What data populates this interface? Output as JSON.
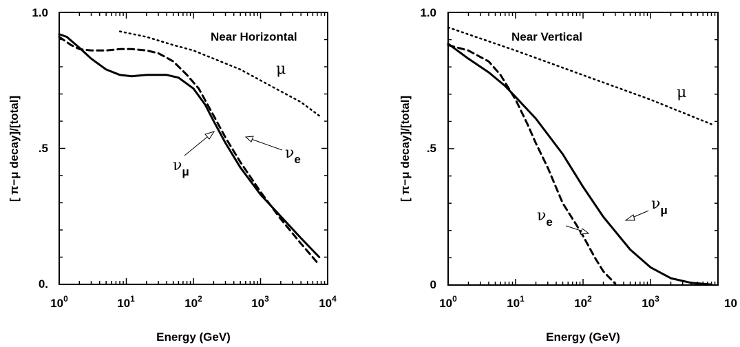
{
  "chart_data": [
    {
      "type": "line",
      "title": "Near Horizontal",
      "xlabel": "Energy (GeV)",
      "ylabel": "[ π−μ  decay]/[total]",
      "xscale": "log",
      "xlim": [
        1,
        10000
      ],
      "ylim": [
        0,
        1
      ],
      "x_ticks": [
        {
          "base": "10",
          "exp": "0"
        },
        {
          "base": "10",
          "exp": "1"
        },
        {
          "base": "10",
          "exp": "2"
        },
        {
          "base": "10",
          "exp": "3"
        },
        {
          "base": "10",
          "exp": "4"
        }
      ],
      "y_ticks": [
        "0.",
        ".5",
        "1.0"
      ],
      "series": [
        {
          "name": "μ",
          "style": "dotted",
          "x": [
            8,
            20,
            50,
            100,
            200,
            500,
            1000,
            2000,
            4000,
            7500
          ],
          "y": [
            0.93,
            0.91,
            0.88,
            0.86,
            0.83,
            0.79,
            0.75,
            0.71,
            0.67,
            0.62
          ]
        },
        {
          "name": "νe",
          "style": "dashed",
          "x": [
            1,
            1.5,
            2,
            3,
            5,
            8,
            12,
            20,
            30,
            50,
            80,
            120,
            200,
            300,
            500,
            1000,
            2000,
            4000,
            7000
          ],
          "y": [
            0.91,
            0.88,
            0.865,
            0.86,
            0.86,
            0.865,
            0.865,
            0.86,
            0.85,
            0.82,
            0.77,
            0.72,
            0.62,
            0.54,
            0.45,
            0.34,
            0.24,
            0.15,
            0.08
          ]
        },
        {
          "name": "νμ",
          "style": "solid",
          "x": [
            1,
            1.3,
            2,
            3,
            5,
            8,
            12,
            20,
            40,
            60,
            100,
            150,
            200,
            300,
            500,
            1000,
            2000,
            4000,
            7500
          ],
          "y": [
            0.92,
            0.91,
            0.87,
            0.83,
            0.79,
            0.77,
            0.765,
            0.77,
            0.77,
            0.76,
            0.72,
            0.66,
            0.6,
            0.52,
            0.43,
            0.33,
            0.25,
            0.17,
            0.1
          ]
        }
      ],
      "annotations": [
        {
          "text": "μ",
          "sub": ""
        },
        {
          "text": "ν",
          "sub": "μ"
        },
        {
          "text": "ν",
          "sub": "e"
        }
      ]
    },
    {
      "type": "line",
      "title": "Near Vertical",
      "xlabel": "Energy (GeV)",
      "ylabel": "[ π−μ  decay]/[total]",
      "xscale": "log",
      "xlim": [
        1,
        10000
      ],
      "ylim": [
        0,
        1
      ],
      "x_ticks": [
        {
          "base": "10",
          "exp": "0"
        },
        {
          "base": "10",
          "exp": "1"
        },
        {
          "base": "10",
          "exp": "2"
        },
        {
          "base": "10",
          "exp": "3"
        },
        {
          "base": "10",
          "exp": ""
        }
      ],
      "y_ticks": [
        "0",
        ".5",
        "1.0"
      ],
      "series": [
        {
          "name": "μ",
          "style": "dotted",
          "x": [
            1,
            10,
            100,
            1000,
            8000
          ],
          "y": [
            0.945,
            0.86,
            0.77,
            0.68,
            0.59
          ]
        },
        {
          "name": "νe",
          "style": "dashed",
          "x": [
            1,
            2,
            4,
            6,
            10,
            15,
            20,
            30,
            50,
            80,
            100,
            150,
            200,
            300
          ],
          "y": [
            0.88,
            0.86,
            0.82,
            0.77,
            0.68,
            0.59,
            0.52,
            0.43,
            0.3,
            0.22,
            0.18,
            0.1,
            0.05,
            0.005
          ]
        },
        {
          "name": "νμ",
          "style": "solid",
          "x": [
            1,
            2,
            4,
            7,
            10,
            20,
            50,
            100,
            200,
            500,
            1000,
            2000,
            4000,
            8000
          ],
          "y": [
            0.885,
            0.83,
            0.78,
            0.73,
            0.69,
            0.61,
            0.48,
            0.36,
            0.25,
            0.13,
            0.065,
            0.025,
            0.008,
            0.002
          ]
        }
      ],
      "annotations": [
        {
          "text": "μ",
          "sub": ""
        },
        {
          "text": "ν",
          "sub": "μ"
        },
        {
          "text": "ν",
          "sub": "e"
        }
      ]
    }
  ]
}
